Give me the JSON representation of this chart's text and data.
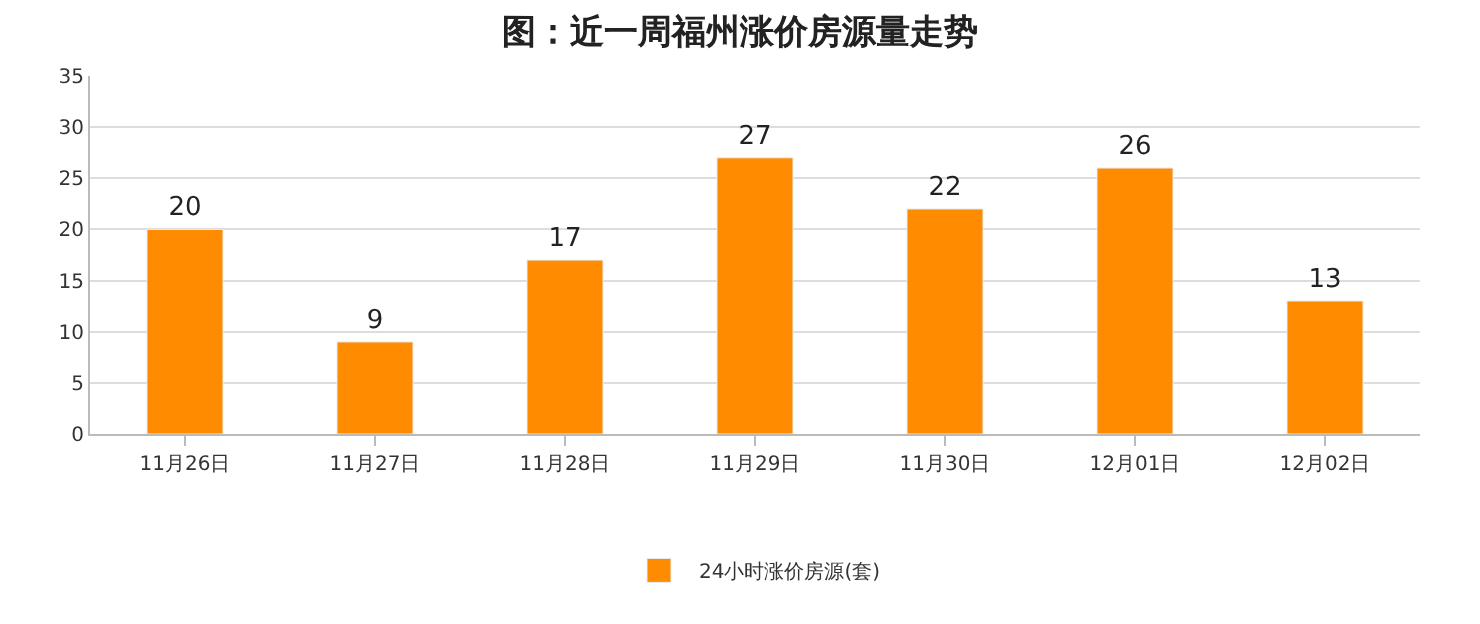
{
  "chart_data": {
    "type": "bar",
    "title": "图：近一周福州涨价房源量走势",
    "categories": [
      "11月26日",
      "11月27日",
      "11月28日",
      "11月29日",
      "11月30日",
      "12月01日",
      "12月02日"
    ],
    "series": [
      {
        "name": "24小时涨价房源(套)",
        "color": "#ff8c00",
        "values": [
          20,
          9,
          17,
          27,
          22,
          26,
          13
        ]
      }
    ],
    "ylim": [
      0,
      35
    ],
    "yticks": [
      0,
      5,
      10,
      15,
      20,
      25,
      30,
      35
    ],
    "grid": "y",
    "legend": "bottom",
    "data_labels": true
  }
}
